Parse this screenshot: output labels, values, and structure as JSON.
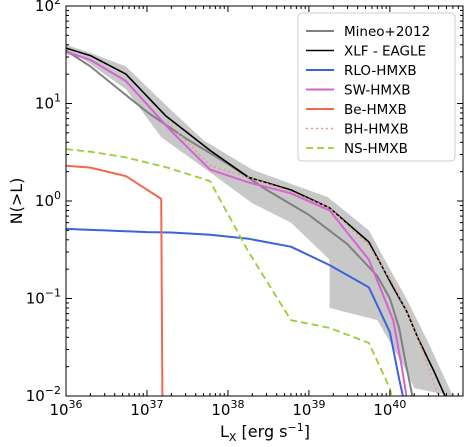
{
  "chart_data": {
    "type": "line",
    "xlabel": "L",
    "xlabel_sub": "X",
    "xlabel_unit_open": " [erg s",
    "xlabel_unit_sup": "−1",
    "xlabel_unit_close": "]",
    "ylabel": "N(>L)",
    "x_scale": "log",
    "y_scale": "log",
    "xlim": [
      1e+36,
      8e+40
    ],
    "ylim": [
      0.01,
      100
    ],
    "grid": false,
    "legend_position": "top-right",
    "x_ticks": [
      {
        "value": 1e+36,
        "base": "10",
        "exp": "36"
      },
      {
        "value": 1e+37,
        "base": "10",
        "exp": "37"
      },
      {
        "value": 1e+38,
        "base": "10",
        "exp": "38"
      },
      {
        "value": 1e+39,
        "base": "10",
        "exp": "39"
      },
      {
        "value": 1e+40,
        "base": "10",
        "exp": "40"
      }
    ],
    "y_ticks": [
      {
        "value": 0.01,
        "base": "10",
        "exp": "−2"
      },
      {
        "value": 0.1,
        "base": "10",
        "exp": "−1"
      },
      {
        "value": 1,
        "base": "10",
        "exp": "0"
      },
      {
        "value": 10,
        "base": "10",
        "exp": "1"
      },
      {
        "value": 100,
        "base": "10",
        "exp": "2"
      }
    ],
    "band": {
      "color": "#c8c8c8",
      "upper": [
        [
          1e+36,
          40
        ],
        [
          2e+36,
          33
        ],
        [
          5.5e+36,
          24
        ],
        [
          2e+37,
          8.5
        ],
        [
          5e+37,
          4.2
        ],
        [
          2e+38,
          2.1
        ],
        [
          6e+38,
          1.5
        ],
        [
          1.7e+39,
          1.1
        ],
        [
          5.5e+39,
          0.5
        ],
        [
          1e+40,
          0.2
        ],
        [
          1.6e+40,
          0.1
        ],
        [
          3e+40,
          0.035
        ],
        [
          6e+40,
          0.01
        ]
      ],
      "lower": [
        [
          6e+40,
          0.01
        ],
        [
          2e+40,
          0.012
        ],
        [
          1.5e+40,
          0.02
        ],
        [
          7e+39,
          0.06
        ],
        [
          1.8e+39,
          0.08
        ],
        [
          1.8e+39,
          0.25
        ],
        [
          6e+38,
          0.6
        ],
        [
          2e+38,
          0.95
        ],
        [
          5e+37,
          2.2
        ],
        [
          1.5e+37,
          4.5
        ],
        [
          5.5e+36,
          14
        ],
        [
          1.5e+36,
          30
        ],
        [
          1e+36,
          32
        ]
      ]
    },
    "series": [
      {
        "name": "Mineo+2012",
        "color": "#808080",
        "width": 2,
        "dash": "",
        "points": [
          [
            1e+36,
            35
          ],
          [
            2e+36,
            24
          ],
          [
            5e+36,
            13
          ],
          [
            1e+37,
            8.2
          ],
          [
            3e+37,
            4.4
          ],
          [
            1e+38,
            2.4
          ],
          [
            3e+38,
            1.3
          ],
          [
            1e+39,
            0.72
          ],
          [
            3e+39,
            0.36
          ],
          [
            7e+39,
            0.17
          ],
          [
            1e+40,
            0.1
          ],
          [
            1.3e+40,
            0.05
          ],
          [
            1.6e+40,
            0.02
          ],
          [
            1.9e+40,
            0.01
          ]
        ]
      },
      {
        "name": "XLF - EAGLE",
        "color": "#000000",
        "width": 1.6,
        "dash": "",
        "points": [
          [
            1e+36,
            37
          ],
          [
            2e+36,
            31
          ],
          [
            5.5e+36,
            20
          ],
          [
            1.7e+37,
            7.5
          ],
          [
            6e+37,
            3.3
          ],
          [
            1.8e+38,
            1.75
          ],
          [
            6e+38,
            1.3
          ],
          [
            1.8e+39,
            0.85
          ],
          [
            5.5e+39,
            0.38
          ],
          [
            1.1e+40,
            0.13
          ],
          [
            1.6e+40,
            0.075
          ],
          [
            2.2e+40,
            0.04
          ],
          [
            3.5e+40,
            0.018
          ],
          [
            4.8e+40,
            0.01
          ]
        ]
      },
      {
        "name": "RLO-HMXB",
        "color": "#3b64db",
        "width": 2,
        "dash": "",
        "points": [
          [
            1e+36,
            0.52
          ],
          [
            1.5e+36,
            0.51
          ],
          [
            3e+36,
            0.5
          ],
          [
            1e+37,
            0.48
          ],
          [
            2e+37,
            0.475
          ],
          [
            6e+37,
            0.45
          ],
          [
            1.8e+38,
            0.41
          ],
          [
            6e+38,
            0.34
          ],
          [
            1.8e+39,
            0.22
          ],
          [
            5.5e+39,
            0.13
          ],
          [
            1e+40,
            0.045
          ],
          [
            1.3e+40,
            0.015
          ],
          [
            1.45e+40,
            0.01
          ]
        ]
      },
      {
        "name": "SW-HMXB",
        "color": "#d563d5",
        "width": 2,
        "dash": "",
        "points": [
          [
            1e+36,
            34
          ],
          [
            2e+36,
            28
          ],
          [
            5.5e+36,
            17
          ],
          [
            2e+37,
            5.2
          ],
          [
            6e+37,
            2.1
          ],
          [
            1.8e+38,
            1.55
          ],
          [
            6e+38,
            1.2
          ],
          [
            1.8e+39,
            0.8
          ],
          [
            5.5e+39,
            0.25
          ],
          [
            1.1e+40,
            0.06
          ],
          [
            1.4e+40,
            0.02
          ],
          [
            1.6e+40,
            0.01
          ]
        ]
      },
      {
        "name": "Be-HMXB",
        "color": "#f2694f",
        "width": 2,
        "dash": "",
        "points": [
          [
            1e+36,
            2.3
          ],
          [
            2e+36,
            2.2
          ],
          [
            5.5e+36,
            1.8
          ],
          [
            1.5e+37,
            1.05
          ],
          [
            1.55e+37,
            0.01
          ]
        ]
      },
      {
        "name": "BH-HMXB",
        "color": "#e89a84",
        "width": 1.6,
        "dash": "2,3",
        "points": [
          [
            1.8e+37,
            6.5
          ],
          [
            6e+37,
            2.3
          ],
          [
            1.8e+38,
            1.75
          ],
          [
            6e+38,
            1.25
          ],
          [
            1.8e+39,
            0.85
          ],
          [
            5.5e+39,
            0.35
          ],
          [
            1.1e+40,
            0.14
          ],
          [
            1.6e+40,
            0.075
          ],
          [
            2.5e+40,
            0.03
          ],
          [
            4e+40,
            0.01
          ]
        ]
      },
      {
        "name": "NS-HMXB",
        "color": "#9acd32",
        "width": 1.8,
        "dash": "7,4",
        "points": [
          [
            1e+36,
            3.4
          ],
          [
            2e+36,
            3.2
          ],
          [
            5.5e+36,
            2.8
          ],
          [
            1.8e+37,
            2.2
          ],
          [
            6e+37,
            1.6
          ],
          [
            1.8e+38,
            0.3
          ],
          [
            6e+38,
            0.06
          ],
          [
            1.8e+39,
            0.05
          ],
          [
            5.5e+39,
            0.035
          ],
          [
            1e+40,
            0.012
          ],
          [
            1.05e+40,
            0.01
          ]
        ]
      }
    ]
  }
}
